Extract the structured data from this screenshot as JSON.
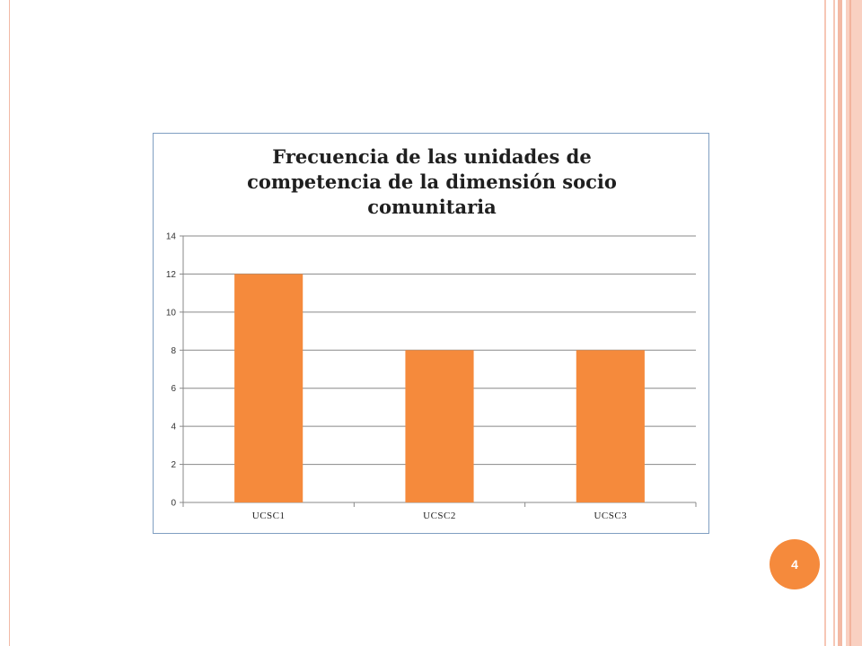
{
  "slide": {
    "page_number": "4",
    "colors": {
      "bar": "#f58a3c",
      "border": "#7f9ec1",
      "accent": "#f58a3c"
    }
  },
  "chart_data": {
    "type": "bar",
    "title_lines": [
      "Frecuencia  de las unidades de",
      "competencia de la dimensión socio",
      "comunitaria"
    ],
    "categories": [
      "UCSC1",
      "UCSC2",
      "UCSC3"
    ],
    "values": [
      12,
      8,
      8
    ],
    "yticks": [
      0,
      2,
      4,
      6,
      8,
      10,
      12,
      14
    ],
    "ylim": [
      0,
      14
    ],
    "xlabel": "",
    "ylabel": "",
    "grid": true,
    "legend": "none"
  }
}
